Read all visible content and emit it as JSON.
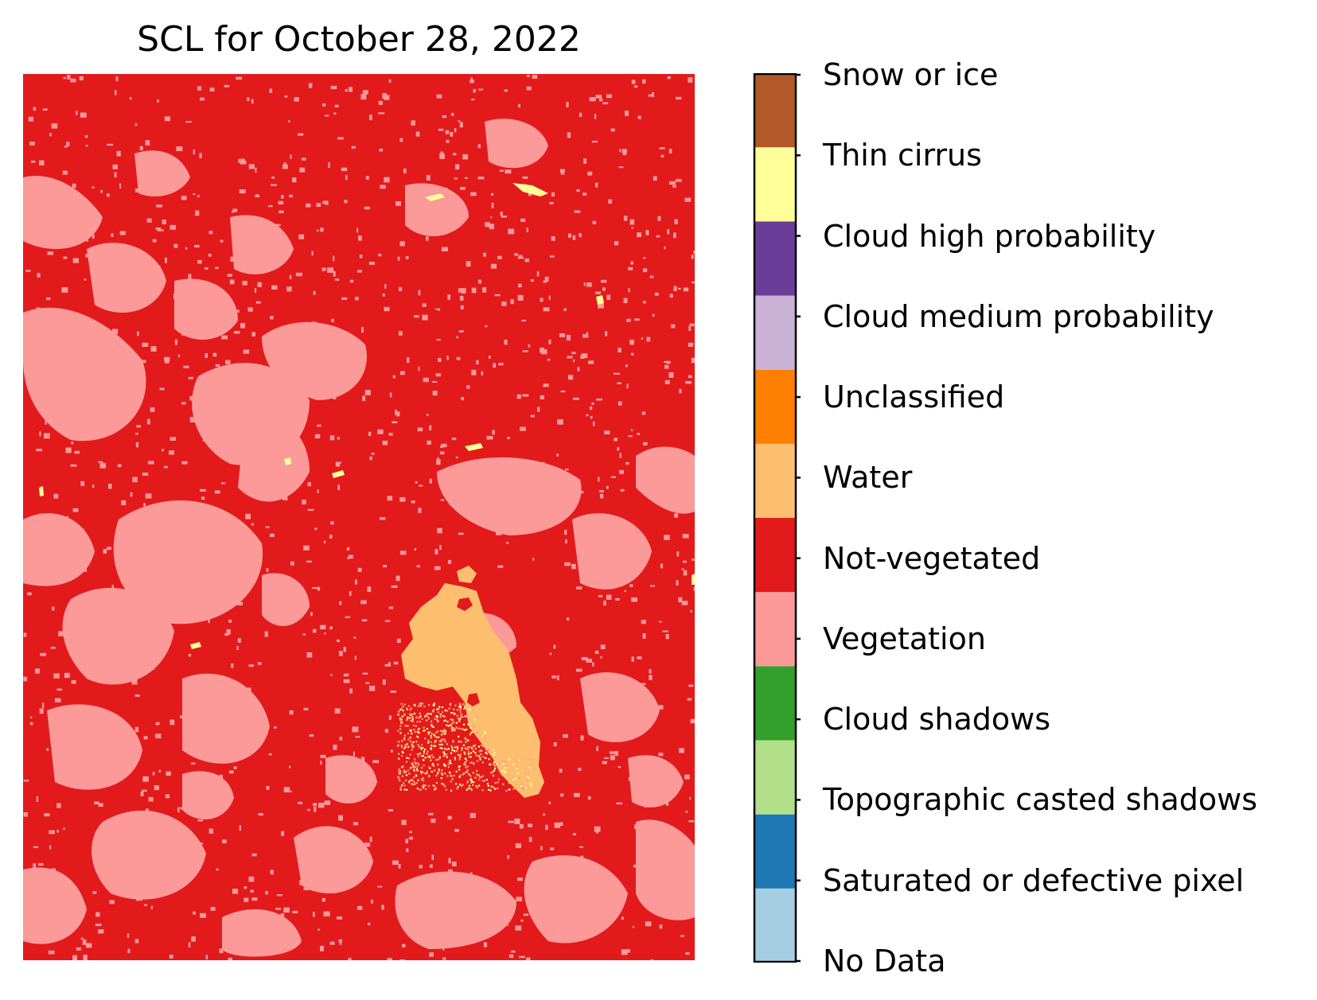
{
  "chart_data": {
    "type": "heatmap",
    "title": "SCL for October 28, 2022",
    "colorbar": {
      "classes": [
        {
          "value": 0,
          "label": "No Data",
          "color": "#a6cee3"
        },
        {
          "value": 1,
          "label": "Saturated or defective pixel",
          "color": "#1f78b4"
        },
        {
          "value": 2,
          "label": "Topographic casted shadows",
          "color": "#b2df8a"
        },
        {
          "value": 3,
          "label": "Cloud shadows",
          "color": "#33a02c"
        },
        {
          "value": 4,
          "label": "Vegetation",
          "color": "#fb9a99"
        },
        {
          "value": 5,
          "label": "Not-vegetated",
          "color": "#e31a1c"
        },
        {
          "value": 6,
          "label": "Water",
          "color": "#fdbf6f"
        },
        {
          "value": 7,
          "label": "Unclassified",
          "color": "#ff7f00"
        },
        {
          "value": 8,
          "label": "Cloud medium probability",
          "color": "#cab2d6"
        },
        {
          "value": 9,
          "label": "Cloud high probability",
          "color": "#6a3d9a"
        },
        {
          "value": 10,
          "label": "Thin cirrus",
          "color": "#ffff99"
        },
        {
          "value": 11,
          "label": "Snow or ice",
          "color": "#b15928"
        }
      ]
    },
    "dominant_class": "Not-vegetated",
    "present_classes": [
      "Not-vegetated",
      "Vegetation",
      "Water",
      "Thin cirrus"
    ]
  }
}
